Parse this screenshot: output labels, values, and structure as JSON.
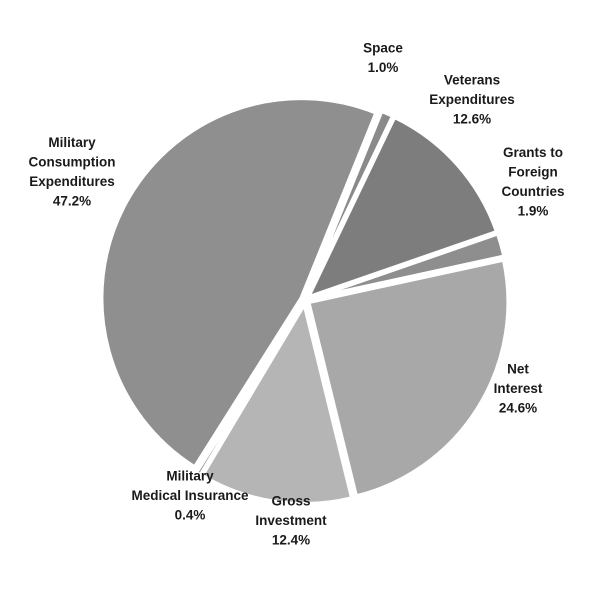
{
  "chart_data": {
    "type": "pie",
    "title": "",
    "start_angle_deg": -68,
    "direction": "clockwise",
    "slices": [
      {
        "name": "Space",
        "value": 1.0,
        "label_lines": [
          "Space",
          "1.0%"
        ],
        "color": "#8a8a8a"
      },
      {
        "name": "Veterans Expenditures",
        "value": 12.6,
        "label_lines": [
          "Veterans",
          "Expenditures",
          "12.6%"
        ],
        "color": "#7d7d7d"
      },
      {
        "name": "Grants to Foreign Countries",
        "value": 1.9,
        "label_lines": [
          "Grants to",
          "Foreign",
          "Countries",
          "1.9%"
        ],
        "color": "#8e8e8e"
      },
      {
        "name": "Net Interest",
        "value": 24.6,
        "label_lines": [
          "Net",
          "Interest",
          "24.6%"
        ],
        "color": "#a8a8a8"
      },
      {
        "name": "Gross Investment",
        "value": 12.4,
        "label_lines": [
          "Gross",
          "Investment",
          "12.4%"
        ],
        "color": "#b5b5b5"
      },
      {
        "name": "Military Medical Insurance",
        "value": 0.4,
        "label_lines": [
          "Military",
          "Medical Insurance",
          "0.4%"
        ],
        "color": "#8c8c8c"
      },
      {
        "name": "Military Consumption Expenditures",
        "value": 47.2,
        "label_lines": [
          "Military",
          "Consumption",
          "Expenditures",
          "47.2%"
        ],
        "color": "#8f8f8f"
      }
    ]
  }
}
